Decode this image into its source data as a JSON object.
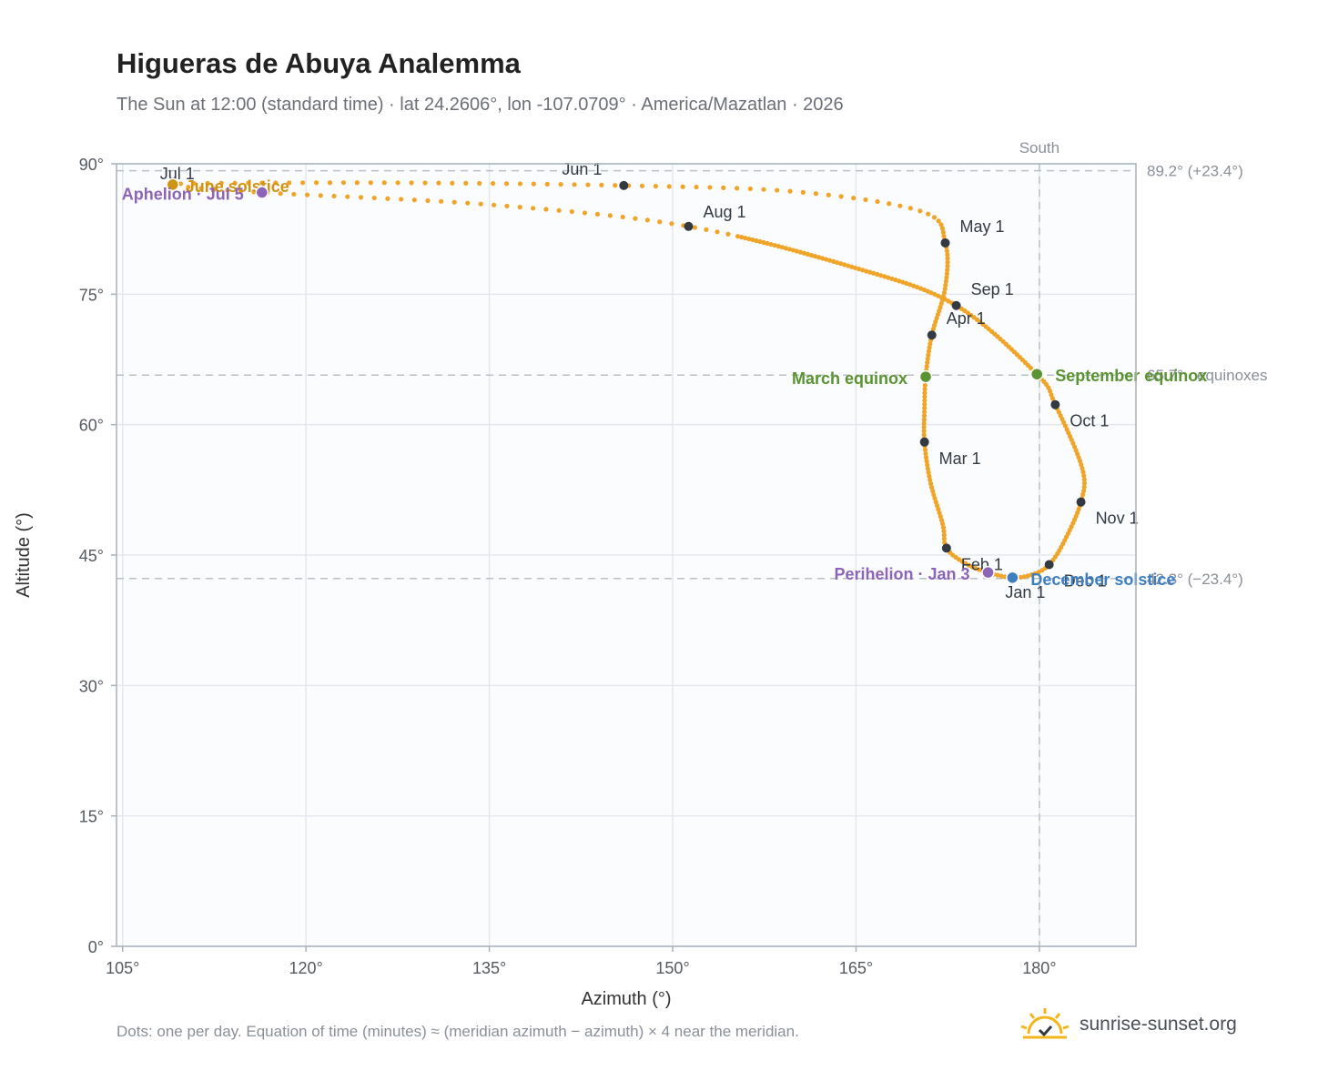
{
  "header": {
    "title": "Higueras de Abuya Analemma",
    "subtitle": "The Sun at 12:00 (standard time) · lat 24.2606°, lon -107.0709° · America/Mazatlan · 2026"
  },
  "footer": {
    "note": "Dots: one per day. Equation of time (minutes) ≈ (meridian azimuth − azimuth) × 4 near the meridian.",
    "brand": "sunrise-sunset.org",
    "brand_icon": "sun-icon"
  },
  "colors": {
    "path": "#f0a428",
    "month_marker": "#333a42",
    "solstice_june": "#d09414",
    "solstice_december": "#3f7fc1",
    "equinox": "#5a9332",
    "apsis": "#8c64b8",
    "reference": "#b9c0c8",
    "plot_bg": "#fbfcfe",
    "grid": "#e4e8ee"
  },
  "chart_data": {
    "type": "scatter",
    "xlabel": "Azimuth (°)",
    "ylabel": "Altitude (°)",
    "xlim": [
      104.5,
      187.9
    ],
    "ylim": [
      0,
      90
    ],
    "x_ticks": [
      105,
      120,
      135,
      150,
      165,
      180
    ],
    "y_ticks": [
      0,
      15,
      30,
      45,
      60,
      75,
      90
    ],
    "x_tick_labels": [
      "105°",
      "120°",
      "135°",
      "150°",
      "165°",
      "180°"
    ],
    "y_tick_labels": [
      "0°",
      "15°",
      "30°",
      "45°",
      "60°",
      "75°",
      "90°"
    ],
    "grid": true,
    "path_note": "one dot per day",
    "path_anchors": [
      {
        "az": 177.8,
        "alt": 42.4
      },
      {
        "az": 175.8,
        "alt": 43.0
      },
      {
        "az": 174.0,
        "alt": 44.0
      },
      {
        "az": 172.4,
        "alt": 45.8
      },
      {
        "az": 172.1,
        "alt": 48.5
      },
      {
        "az": 171.1,
        "alt": 53.3
      },
      {
        "az": 170.6,
        "alt": 58.0
      },
      {
        "az": 170.6,
        "alt": 61.8
      },
      {
        "az": 170.7,
        "alt": 65.5
      },
      {
        "az": 171.2,
        "alt": 70.3
      },
      {
        "az": 172.3,
        "alt": 75.8
      },
      {
        "az": 172.3,
        "alt": 80.9
      },
      {
        "az": 170.4,
        "alt": 84.5
      },
      {
        "az": 160.0,
        "alt": 86.8
      },
      {
        "az": 146.0,
        "alt": 87.5
      },
      {
        "az": 130.0,
        "alt": 87.8
      },
      {
        "az": 116.5,
        "alt": 87.8
      },
      {
        "az": 109.1,
        "alt": 87.6
      },
      {
        "az": 116.4,
        "alt": 86.7
      },
      {
        "az": 135.0,
        "alt": 85.3
      },
      {
        "az": 151.3,
        "alt": 82.8
      },
      {
        "az": 165.0,
        "alt": 78.0
      },
      {
        "az": 173.2,
        "alt": 73.7
      },
      {
        "az": 179.8,
        "alt": 65.8
      },
      {
        "az": 181.3,
        "alt": 62.3
      },
      {
        "az": 183.5,
        "alt": 55.0
      },
      {
        "az": 183.4,
        "alt": 51.1
      },
      {
        "az": 182.0,
        "alt": 46.5
      },
      {
        "az": 180.8,
        "alt": 43.9
      },
      {
        "az": 179.5,
        "alt": 42.8
      },
      {
        "az": 177.8,
        "alt": 42.4
      }
    ],
    "month_markers": [
      {
        "label": "Jan 1",
        "az": 177.8,
        "alt": 42.4
      },
      {
        "label": "Feb 1",
        "az": 172.4,
        "alt": 45.8
      },
      {
        "label": "Mar 1",
        "az": 170.6,
        "alt": 58.0
      },
      {
        "label": "Apr 1",
        "az": 171.2,
        "alt": 70.3
      },
      {
        "label": "May 1",
        "az": 172.3,
        "alt": 80.9
      },
      {
        "label": "Jun 1",
        "az": 146.0,
        "alt": 87.5
      },
      {
        "label": "Jul 1",
        "az": 109.1,
        "alt": 87.6
      },
      {
        "label": "Aug 1",
        "az": 151.3,
        "alt": 82.8
      },
      {
        "label": "Sep 1",
        "az": 173.2,
        "alt": 73.7
      },
      {
        "label": "Oct 1",
        "az": 181.3,
        "alt": 62.3
      },
      {
        "label": "Nov 1",
        "az": 183.4,
        "alt": 51.1
      },
      {
        "label": "Dec 1",
        "az": 180.8,
        "alt": 43.9
      }
    ],
    "events": [
      {
        "label": "June solstice",
        "az": 109.1,
        "alt": 87.6,
        "kind": "solstice_june"
      },
      {
        "label": "Aphelion · Jul 5",
        "az": 116.4,
        "alt": 86.7,
        "kind": "apsis"
      },
      {
        "label": "March equinox",
        "az": 170.7,
        "alt": 65.5,
        "kind": "equinox"
      },
      {
        "label": "September equinox",
        "az": 179.8,
        "alt": 65.8,
        "kind": "equinox"
      },
      {
        "label": "Perihelion · Jan 3",
        "az": 175.8,
        "alt": 43.0,
        "kind": "apsis"
      },
      {
        "label": "December solstice",
        "az": 177.8,
        "alt": 42.4,
        "kind": "solstice_december"
      }
    ],
    "reference_lines": [
      {
        "alt": 89.2,
        "label": "89.2° (+23.4°)"
      },
      {
        "alt": 65.7,
        "label": "65.7° · equinoxes"
      },
      {
        "alt": 42.3,
        "label": "42.3° (−23.4°)"
      }
    ],
    "meridian": {
      "az": 180,
      "label": "South"
    }
  }
}
